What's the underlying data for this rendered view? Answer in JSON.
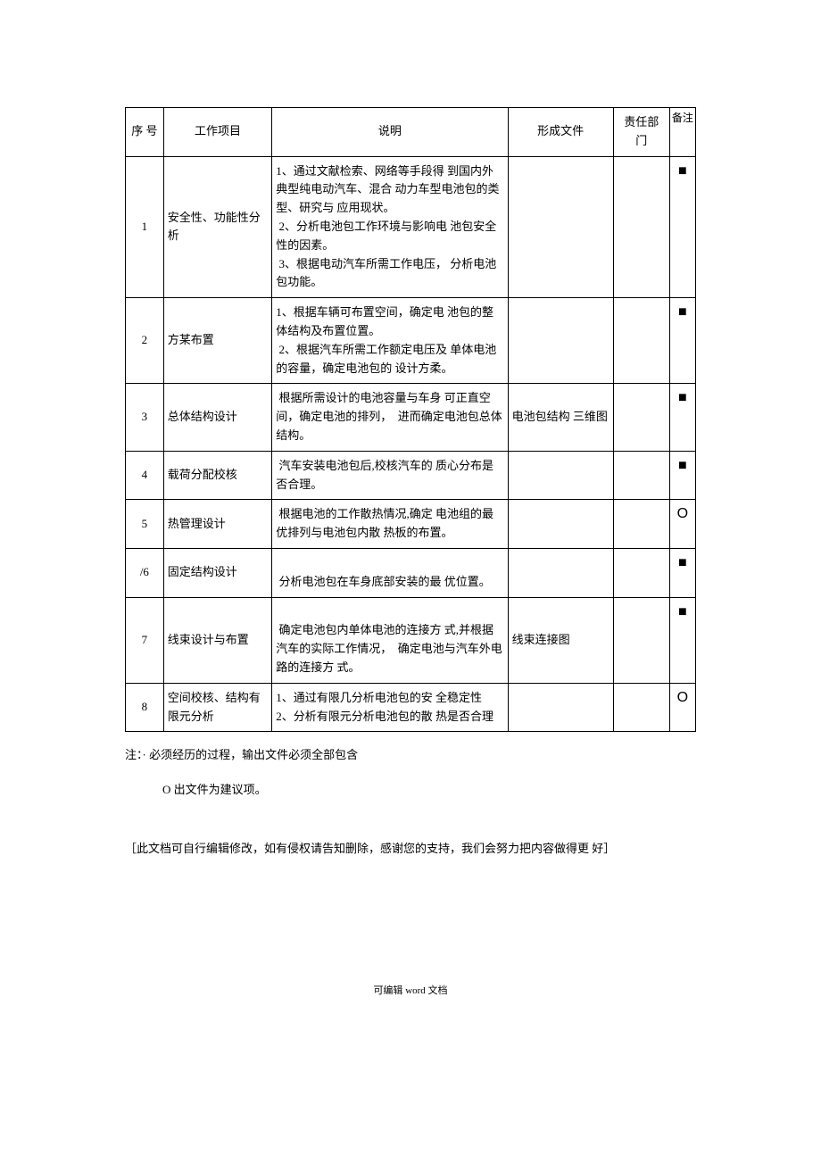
{
  "table": {
    "headers": {
      "seq": "序 号",
      "item": "工作项目",
      "desc": "说明",
      "file": "形成文件",
      "dept": "责任部 门",
      "remark": "备注"
    },
    "rows": [
      {
        "seq": "1",
        "item": "安全性、功能性分析",
        "desc": "1、通过文献检索、网络等手段得 到国内外典型纯电动汽车、混合 动力车型电池包的类型、研究与 应用现状。\n 2、分析电池包工作环境与影响电 池包安全性的因素。\n 3、根据电动汽车所需工作电压， 分析电池包功能。",
        "file": "",
        "dept": "",
        "remark": "■"
      },
      {
        "seq": "2",
        "item": "方某布置",
        "desc": "1、根据车辆可布置空间，确定电 池包的整体结构及布置位置。\n 2、根据汽车所需工作额定电压及 单体电池的容量，确定电池包的 设计方柔。",
        "file": "",
        "dept": "",
        "remark": "■"
      },
      {
        "seq": "3",
        "item": "总体结构设计",
        "desc": " 根据所需设计的电池容量与车身 可正直空间，确定电池的排列，  进而确定电池包总体结构。",
        "file": "电池包结构 三维图",
        "dept": "",
        "remark": "■"
      },
      {
        "seq": "4",
        "item": "载荷分配校核",
        "desc": " 汽车安装电池包后,校核汽车的 质心分布是否合理。",
        "file": "",
        "dept": "",
        "remark": "■"
      },
      {
        "seq": "5",
        "item": "热管理设计",
        "desc": " 根据电池的工作散热情况,确定 电池组的最优排列与电池包内散 热板的布置。",
        "file": "",
        "dept": "",
        "remark": "O"
      },
      {
        "seq": "/6",
        "item": "固定结构设计",
        "desc": "\n 分析电池包在车身底部安装的最 优位置。",
        "file": "",
        "dept": "",
        "remark": "■"
      },
      {
        "seq": "7",
        "item": "线束设计与布置",
        "desc": "\n 确定电池包内单体电池的连接方 式,并根据汽车的实际工作情况，  确定电池与汽车外电路的连接方 式。",
        "file": "线束连接图",
        "dept": "",
        "remark": "■"
      },
      {
        "seq": "8",
        "item": "空间校核、结构有\n限元分析",
        "desc": "1、通过有限几分析电池包的安 全稳定性\n2、分析有限元分析电池包的散 热是否合理",
        "file": "",
        "dept": "",
        "remark": "O"
      }
    ]
  },
  "notes": {
    "line1": "注：· 必须经历的过程，输出文件必须全部包含",
    "line2": "O 出文件为建议项。"
  },
  "disclaimer": "［此文档可自行编辑修改，如有侵权请告知删除，感谢您的支持，我们会努力把内容做得更 好］",
  "footer": {
    "prefix": "可编辑 ",
    "word": "word",
    "suffix": " 文档"
  },
  "markers": {
    "square": "■",
    "circle": "O"
  },
  "colors": {
    "text": "#000000",
    "background": "#ffffff",
    "border": "#000000"
  }
}
